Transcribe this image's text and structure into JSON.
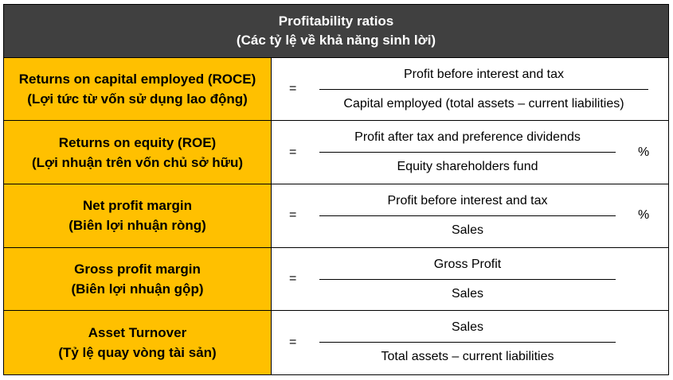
{
  "header": {
    "title": "Profitability ratios",
    "subtitle": "(Các tỷ lệ về khả năng sinh lời)"
  },
  "rows": [
    {
      "label": "Returns on capital employed (ROCE)",
      "label_vi": "(Lợi tức từ vốn sử dụng lao động)",
      "equals": "=",
      "numerator": "Profit before interest and tax",
      "denominator": "Capital employed (total assets – current liabilities)",
      "suffix": ""
    },
    {
      "label": "Returns on equity (ROE)",
      "label_vi": "(Lợi nhuận trên vốn chủ sở hữu)",
      "equals": "=",
      "numerator": "Profit after tax and preference dividends",
      "denominator": "Equity shareholders fund",
      "suffix": "%"
    },
    {
      "label": "Net profit margin",
      "label_vi": "(Biên lợi nhuận ròng)",
      "equals": "=",
      "numerator": "Profit before interest and tax",
      "denominator": "Sales",
      "suffix": "%"
    },
    {
      "label": "Gross profit margin",
      "label_vi": "(Biên lợi nhuận gộp)",
      "equals": "=",
      "numerator": "Gross Profit",
      "denominator": "Sales",
      "suffix": ""
    },
    {
      "label": "Asset Turnover",
      "label_vi": "(Tỷ lệ quay vòng tài sản)",
      "equals": "=",
      "numerator": "Sales",
      "denominator": "Total assets – current liabilities",
      "suffix": ""
    }
  ],
  "colors": {
    "header_bg": "#404040",
    "header_text": "#ffffff",
    "label_bg": "#ffc000",
    "border": "#000000"
  }
}
